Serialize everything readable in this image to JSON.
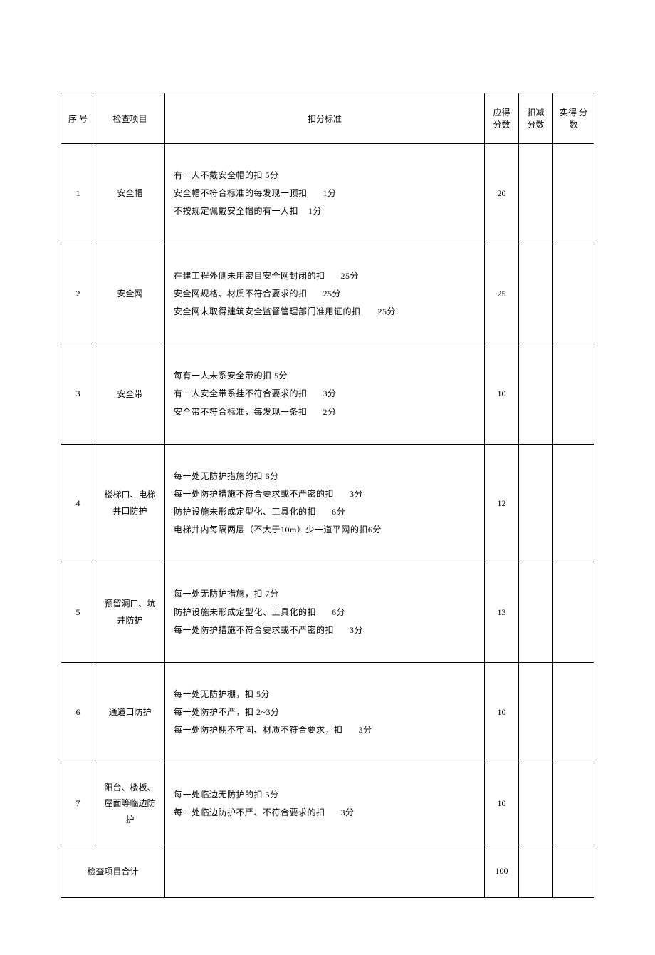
{
  "headers": {
    "seq": "序 号",
    "item": "检查项目",
    "standard": "扣分标准",
    "score": "应得\n分数",
    "deduct": "扣减\n分数",
    "actual": "实得 分数"
  },
  "rows": [
    {
      "seq": "1",
      "item": "安全帽",
      "standard": [
        {
          "text": "有一人不戴安全帽的扣 5分"
        },
        {
          "text": "安全帽不符合标准的每发现一顶扣",
          "suffix": "1分",
          "gap": 22
        },
        {
          "text": "不按规定佩戴安全帽的有一人扣",
          "suffix": "1分",
          "gap": 14
        }
      ],
      "score": "20"
    },
    {
      "seq": "2",
      "item": "安全网",
      "standard": [
        {
          "text": "在建工程外侧未用密目安全网封闭的扣",
          "suffix": "25分",
          "gap": 22
        },
        {
          "text": "安全网规格、材质不符合要求的扣",
          "suffix": "25分",
          "gap": 22
        },
        {
          "text": "安全网未取得建筑安全监督管理部门准用证的扣",
          "suffix": "25分",
          "gap": 24
        }
      ],
      "score": "25"
    },
    {
      "seq": "3",
      "item": "安全带",
      "standard": [
        {
          "text": "每有一人未系安全带的扣 5分"
        },
        {
          "text": "有一人安全带系挂不符合要求的扣",
          "suffix": "3分",
          "gap": 22
        },
        {
          "text": "安全带不符合标准，每发现一条扣",
          "suffix": "2分",
          "gap": 22
        }
      ],
      "score": "10"
    },
    {
      "seq": "4",
      "item": "楼梯口、电梯井口防护",
      "standard": [
        {
          "text": "每一处无防护措施的扣 6分"
        },
        {
          "text": "每一处防护措施不符合要求或不严密的扣",
          "suffix": "3分",
          "gap": 22
        },
        {
          "text": "防护设施未形成定型化、工具化的扣",
          "suffix": "6分",
          "gap": 22
        },
        {
          "text": "电梯井内每隔两层（不大于10m）少一道平网的扣6分"
        }
      ],
      "score": "12"
    },
    {
      "seq": "5",
      "item": "预留洞口、坑井防护",
      "standard": [
        {
          "text": "每一处无防护措施，扣 7分"
        },
        {
          "text": "防护设施未形成定型化、工具化的扣",
          "suffix": "6分",
          "gap": 22
        },
        {
          "text": "每一处防护措施不符合要求或不严密的扣",
          "suffix": "3分",
          "gap": 22
        }
      ],
      "score": "13"
    },
    {
      "seq": "6",
      "item": "通道口防护",
      "standard": [
        {
          "text": "每一处无防护棚，扣 5分"
        },
        {
          "text": "每一处防护不严，扣 2~3分"
        },
        {
          "text": "每一处防护棚不牢固、材质不符合要求，扣",
          "suffix": "3分",
          "gap": 22
        }
      ],
      "score": "10"
    },
    {
      "seq": "7",
      "item": "阳台、楼板、屋面等临边防护",
      "standard": [
        {
          "text": "每一处临边无防护的扣 5分"
        },
        {
          "text": "每一处临边防护不严、不符合要求的扣",
          "suffix": "3分",
          "gap": 22
        }
      ],
      "score": "10"
    }
  ],
  "total": {
    "label": "检查项目合计",
    "score": "100"
  }
}
